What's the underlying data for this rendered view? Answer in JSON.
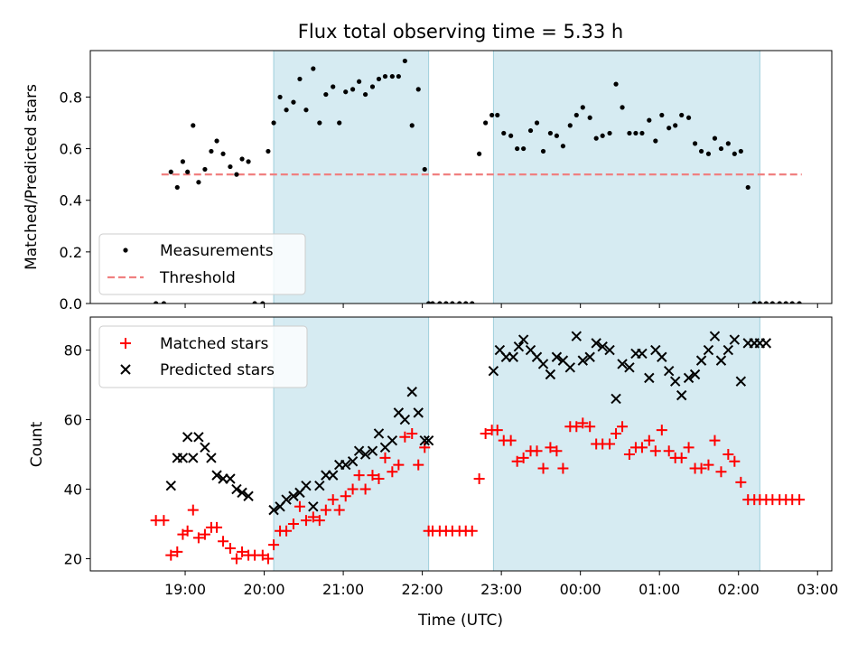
{
  "chart_data": [
    {
      "type": "scatter",
      "title": "Flux total observing time = 5.33 h",
      "ylabel": "Matched/Predicted stars",
      "xlabel": "",
      "ylim": [
        0,
        0.98
      ],
      "yticks": [
        "0.0",
        "0.2",
        "0.4",
        "0.6",
        "0.8"
      ],
      "ytick_values": [
        0,
        0.2,
        0.4,
        0.6,
        0.8
      ],
      "grid": false,
      "legend_placement": "lower-left",
      "shaded_intervals_hours": [
        [
          20.12,
          22.08
        ],
        [
          22.9,
          26.27
        ]
      ],
      "threshold": {
        "name": "Threshold",
        "y": 0.5,
        "x_start": 18.7,
        "x_end": 26.8,
        "color": "#f08080"
      },
      "series": [
        {
          "name": "Measurements",
          "color": "#000000",
          "x": [
            18.63,
            18.73,
            18.82,
            18.9,
            18.97,
            19.03,
            19.1,
            19.17,
            19.25,
            19.33,
            19.4,
            19.48,
            19.57,
            19.65,
            19.72,
            19.8,
            19.88,
            19.98,
            20.05,
            20.12,
            20.2,
            20.28,
            20.37,
            20.45,
            20.53,
            20.62,
            20.7,
            20.78,
            20.87,
            20.95,
            21.03,
            21.12,
            21.2,
            21.28,
            21.37,
            21.45,
            21.53,
            21.62,
            21.7,
            21.78,
            21.87,
            21.95,
            22.03,
            22.08,
            22.13,
            22.22,
            22.3,
            22.38,
            22.47,
            22.55,
            22.63,
            22.72,
            22.8,
            22.88,
            22.95,
            23.03,
            23.12,
            23.2,
            23.28,
            23.37,
            23.45,
            23.53,
            23.62,
            23.7,
            23.78,
            23.87,
            23.95,
            24.03,
            24.12,
            24.2,
            24.28,
            24.37,
            24.45,
            24.53,
            24.62,
            24.7,
            24.78,
            24.87,
            24.95,
            25.03,
            25.12,
            25.2,
            25.28,
            25.37,
            25.45,
            25.53,
            25.62,
            25.7,
            25.78,
            25.87,
            25.95,
            26.03,
            26.12,
            26.2,
            26.27,
            26.35,
            26.43,
            26.52,
            26.6,
            26.68,
            26.77
          ],
          "values": [
            0.0,
            0.0,
            0.51,
            0.45,
            0.55,
            0.51,
            0.69,
            0.47,
            0.52,
            0.59,
            0.63,
            0.58,
            0.53,
            0.5,
            0.56,
            0.55,
            0.0,
            0.0,
            0.59,
            0.7,
            0.8,
            0.75,
            0.78,
            0.87,
            0.75,
            0.91,
            0.7,
            0.81,
            0.84,
            0.7,
            0.82,
            0.83,
            0.86,
            0.81,
            0.84,
            0.87,
            0.88,
            0.88,
            0.88,
            0.94,
            0.69,
            0.83,
            0.52,
            0.0,
            0.0,
            0.0,
            0.0,
            0.0,
            0.0,
            0.0,
            0.0,
            0.58,
            0.7,
            0.73,
            0.73,
            0.66,
            0.65,
            0.6,
            0.6,
            0.67,
            0.7,
            0.59,
            0.66,
            0.65,
            0.61,
            0.69,
            0.73,
            0.76,
            0.72,
            0.64,
            0.65,
            0.66,
            0.85,
            0.76,
            0.66,
            0.66,
            0.66,
            0.71,
            0.63,
            0.73,
            0.68,
            0.69,
            0.73,
            0.72,
            0.62,
            0.59,
            0.58,
            0.64,
            0.6,
            0.62,
            0.58,
            0.59,
            0.45,
            0.0,
            0.0,
            0.0,
            0.0,
            0.0,
            0.0,
            0.0,
            0.0
          ]
        }
      ]
    },
    {
      "type": "scatter",
      "title": "",
      "xlabel": "Time (UTC)",
      "ylabel": "Count",
      "ylim": [
        16.5,
        89.5
      ],
      "yticks": [
        "20",
        "40",
        "60",
        "80"
      ],
      "ytick_values": [
        20,
        40,
        60,
        80
      ],
      "xlim": [
        17.8,
        27.18
      ],
      "xticks": [
        "19:00",
        "20:00",
        "21:00",
        "22:00",
        "23:00",
        "00:00",
        "01:00",
        "02:00",
        "03:00"
      ],
      "xtick_values": [
        19,
        20,
        21,
        22,
        23,
        24,
        25,
        26,
        27
      ],
      "grid": false,
      "legend_placement": "upper-left",
      "shaded_intervals_hours": [
        [
          20.12,
          22.08
        ],
        [
          22.9,
          26.27
        ]
      ],
      "series": [
        {
          "name": "Matched stars",
          "color": "#ff0000",
          "marker": "plus",
          "x": [
            18.63,
            18.73,
            18.82,
            18.9,
            18.97,
            19.03,
            19.1,
            19.17,
            19.25,
            19.33,
            19.4,
            19.48,
            19.57,
            19.65,
            19.72,
            19.8,
            19.88,
            19.98,
            20.05,
            20.12,
            20.2,
            20.28,
            20.37,
            20.45,
            20.53,
            20.62,
            20.7,
            20.78,
            20.87,
            20.95,
            21.03,
            21.12,
            21.2,
            21.28,
            21.37,
            21.45,
            21.53,
            21.62,
            21.7,
            21.78,
            21.87,
            21.95,
            22.03,
            22.08,
            22.13,
            22.22,
            22.3,
            22.38,
            22.47,
            22.55,
            22.63,
            22.72,
            22.8,
            22.88,
            22.95,
            23.03,
            23.12,
            23.2,
            23.28,
            23.37,
            23.45,
            23.53,
            23.62,
            23.7,
            23.78,
            23.87,
            23.95,
            24.03,
            24.12,
            24.2,
            24.28,
            24.37,
            24.45,
            24.53,
            24.62,
            24.7,
            24.78,
            24.87,
            24.95,
            25.03,
            25.12,
            25.2,
            25.28,
            25.37,
            25.45,
            25.53,
            25.62,
            25.7,
            25.78,
            25.87,
            25.95,
            26.03,
            26.12,
            26.2,
            26.27,
            26.35,
            26.43,
            26.52,
            26.6,
            26.68,
            26.77
          ],
          "values": [
            31,
            31,
            21,
            22,
            27,
            28,
            34,
            26,
            27,
            29,
            29,
            25,
            23,
            20,
            22,
            21,
            21,
            21,
            20,
            24,
            28,
            28,
            30,
            35,
            31,
            32,
            31,
            34,
            37,
            34,
            38,
            40,
            44,
            40,
            44,
            43,
            49,
            45,
            47,
            55,
            56,
            47,
            52,
            28,
            28,
            28,
            28,
            28,
            28,
            28,
            28,
            43,
            56,
            57,
            57,
            54,
            54,
            48,
            49,
            51,
            51,
            46,
            52,
            51,
            46,
            58,
            58,
            59,
            58,
            53,
            53,
            53,
            56,
            58,
            50,
            52,
            52,
            54,
            51,
            57,
            51,
            49,
            49,
            52,
            46,
            46,
            47,
            54,
            45,
            50,
            48,
            42,
            37,
            37,
            37,
            37,
            37,
            37,
            37,
            37,
            37
          ]
        },
        {
          "name": "Predicted stars",
          "color": "#000000",
          "marker": "x",
          "x": [
            18.82,
            18.9,
            18.97,
            19.03,
            19.1,
            19.17,
            19.25,
            19.33,
            19.4,
            19.48,
            19.57,
            19.65,
            19.72,
            19.8,
            20.12,
            20.2,
            20.28,
            20.37,
            20.45,
            20.53,
            20.62,
            20.7,
            20.78,
            20.87,
            20.95,
            21.03,
            21.12,
            21.2,
            21.28,
            21.37,
            21.45,
            21.53,
            21.62,
            21.7,
            21.78,
            21.87,
            21.95,
            22.03,
            22.08,
            22.9,
            22.98,
            23.06,
            23.15,
            23.22,
            23.28,
            23.37,
            23.45,
            23.53,
            23.62,
            23.7,
            23.78,
            23.87,
            23.95,
            24.03,
            24.12,
            24.2,
            24.28,
            24.37,
            24.45,
            24.53,
            24.62,
            24.7,
            24.78,
            24.87,
            24.95,
            25.03,
            25.12,
            25.2,
            25.28,
            25.37,
            25.45,
            25.53,
            25.62,
            25.7,
            25.78,
            25.87,
            25.95,
            26.03,
            26.12,
            26.2,
            26.27,
            26.35
          ],
          "values": [
            41,
            49,
            49,
            55,
            49,
            55,
            52,
            49,
            44,
            43,
            43,
            40,
            39,
            38,
            34,
            35,
            37,
            38,
            39,
            41,
            35,
            41,
            44,
            44,
            47,
            47,
            48,
            51,
            50,
            51,
            56,
            52,
            54,
            62,
            60,
            68,
            62,
            54,
            54,
            74,
            80,
            78,
            78,
            81,
            83,
            80,
            78,
            76,
            73,
            78,
            77,
            75,
            84,
            77,
            78,
            82,
            81,
            80,
            66,
            76,
            75,
            79,
            79,
            72,
            80,
            78,
            74,
            71,
            67,
            72,
            73,
            77,
            80,
            84,
            77,
            80,
            83,
            71,
            82,
            82,
            82,
            82
          ]
        }
      ]
    }
  ]
}
